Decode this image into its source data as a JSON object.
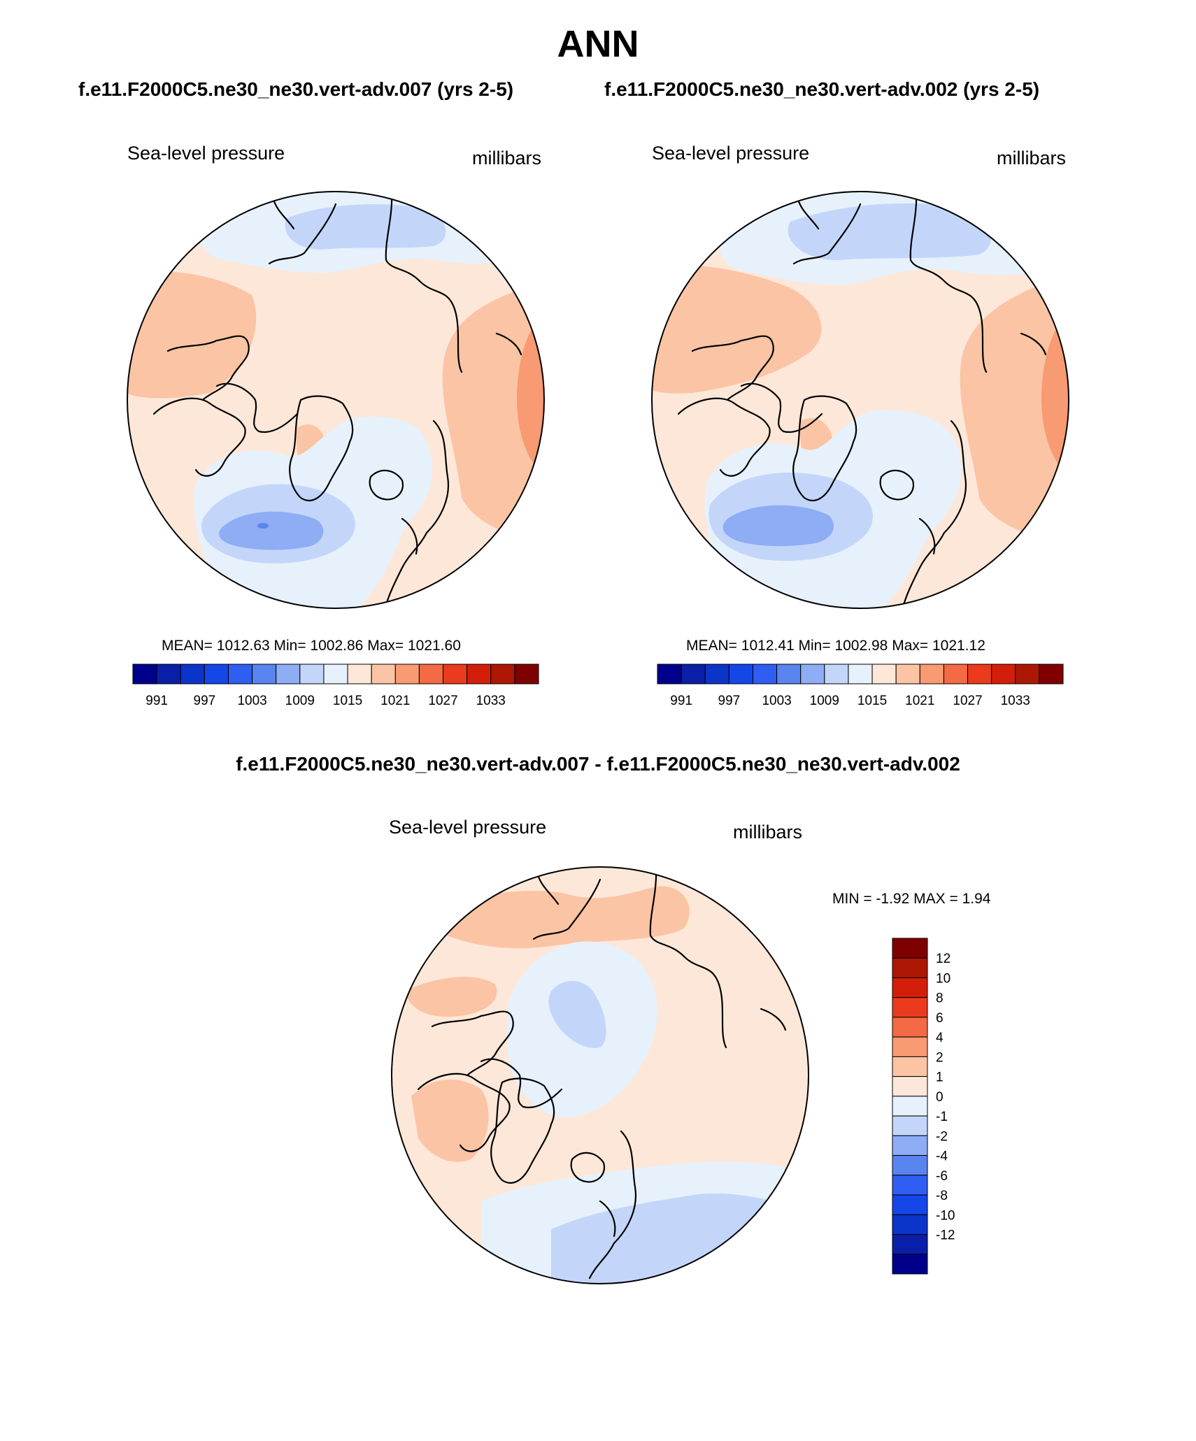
{
  "title": "ANN",
  "top_left": {
    "case_label": "f.e11.F2000C5.ne30_ne30.vert-adv.007 (yrs 2-5)",
    "variable": "Sea-level pressure",
    "units": "millibars",
    "stats": "MEAN= 1012.63  Min= 1002.86  Max= 1021.60"
  },
  "top_right": {
    "case_label": "f.e11.F2000C5.ne30_ne30.vert-adv.002 (yrs 2-5)",
    "variable": "Sea-level pressure",
    "units": "millibars",
    "stats": "MEAN= 1012.41  Min= 1002.98  Max= 1021.12"
  },
  "diff": {
    "case_label": "f.e11.F2000C5.ne30_ne30.vert-adv.007 - f.e11.F2000C5.ne30_ne30.vert-adv.002",
    "variable": "Sea-level pressure",
    "units": "millibars",
    "stats": "MIN =  -1.92 MAX =   1.94"
  },
  "abs_colorbar": {
    "colors": [
      "#00008b",
      "#0a1fa8",
      "#0b34c8",
      "#1547e8",
      "#2f5ef2",
      "#5a84ef",
      "#8fadf5",
      "#c3d6fa",
      "#e7f1fb",
      "#fde7d8",
      "#fbc4a4",
      "#f89a72",
      "#f36a45",
      "#ea3b1c",
      "#d31f0a",
      "#ad1805",
      "#7f0000"
    ],
    "tick_labels": [
      "991",
      "997",
      "1003",
      "1009",
      "1015",
      "1021",
      "1027",
      "1033"
    ]
  },
  "diff_colorbar": {
    "colors": [
      "#00008b",
      "#0a1fa8",
      "#0b34c8",
      "#1547e8",
      "#2f5ef2",
      "#5a84ef",
      "#8fadf5",
      "#c3d6fa",
      "#e7f1fb",
      "#fde7d8",
      "#fbc4a4",
      "#f89a72",
      "#f36a45",
      "#ea3b1c",
      "#d31f0a",
      "#ad1805",
      "#7f0000"
    ],
    "tick_labels": [
      "12",
      "10",
      "8",
      "6",
      "4",
      "2",
      "1",
      "0",
      "-1",
      "-2",
      "-4",
      "-6",
      "-8",
      "-10",
      "-12"
    ]
  }
}
